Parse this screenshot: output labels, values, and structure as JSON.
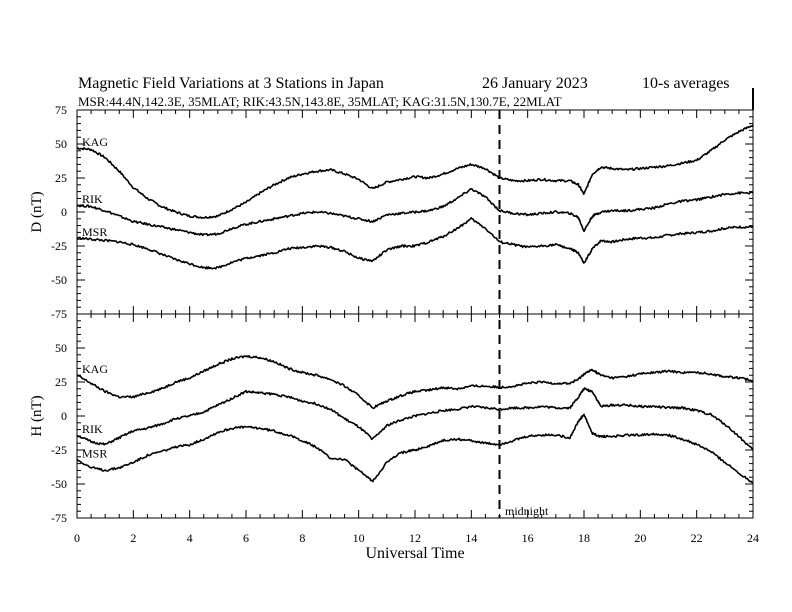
{
  "chart_data": {
    "type": "line",
    "title": "Magnetic Field Variations at 3 Stations in Japan",
    "date": "26 January  2023",
    "averaging": "10-s averages",
    "subtitle": "MSR:44.4N,142.3E, 35MLAT;  RIK:43.5N,143.8E, 35MLAT;  KAG:31.5N,130.7E, 22MLAT",
    "xlabel": "Universal Time",
    "xlim": [
      0,
      24
    ],
    "x_ticks": [
      "0",
      "2",
      "4",
      "6",
      "8",
      "10",
      "12",
      "14",
      "16",
      "18",
      "20",
      "22",
      "24"
    ],
    "midnight_marker": {
      "x": 15,
      "label": "midnight"
    },
    "panels": [
      {
        "ylabel": "D (nT)",
        "ylim": [
          -75,
          75
        ],
        "y_ticks": [
          "75",
          "50",
          "25",
          "0",
          "-25",
          "-50",
          "-75"
        ],
        "series": [
          {
            "name": "KAG",
            "x": [
              0,
              0.5,
              1,
              1.5,
              2,
              2.5,
              3,
              3.5,
              4,
              4.5,
              5,
              5.5,
              6,
              6.5,
              7,
              7.5,
              8,
              8.5,
              9,
              9.5,
              10,
              10.5,
              11,
              11.5,
              12,
              12.5,
              13,
              13.5,
              14,
              14.5,
              15,
              15.5,
              16,
              16.5,
              17,
              17.5,
              17.8,
              18,
              18.3,
              18.6,
              19,
              19.5,
              20,
              20.5,
              21,
              21.5,
              22,
              22.5,
              23,
              23.5,
              24
            ],
            "y": [
              47,
              46,
              40,
              30,
              18,
              10,
              4,
              0,
              -3,
              -4,
              -3,
              2,
              7,
              14,
              20,
              25,
              28,
              30,
              31,
              28,
              24,
              17,
              22,
              24,
              26,
              25,
              28,
              32,
              35,
              32,
              25,
              23,
              23,
              24,
              23,
              23,
              20,
              13,
              28,
              33,
              32,
              31,
              32,
              33,
              34,
              36,
              38,
              45,
              53,
              59,
              64
            ]
          },
          {
            "name": "RIK",
            "x": [
              0,
              0.5,
              1,
              1.5,
              2,
              2.5,
              3,
              3.5,
              4,
              4.5,
              5,
              5.5,
              6,
              6.5,
              7,
              7.5,
              8,
              8.5,
              9,
              9.5,
              10,
              10.5,
              11,
              11.5,
              12,
              12.5,
              13,
              13.5,
              14,
              14.5,
              15,
              15.5,
              16,
              16.5,
              17,
              17.5,
              17.8,
              18,
              18.3,
              18.6,
              19,
              19.5,
              20,
              20.5,
              21,
              21.5,
              22,
              22.5,
              23,
              23.5,
              24
            ],
            "y": [
              5,
              4,
              1,
              -3,
              -7,
              -9,
              -11,
              -13,
              -15,
              -17,
              -16,
              -12,
              -9,
              -7,
              -5,
              -3,
              -1,
              0,
              -1,
              -3,
              -5,
              -7,
              -2,
              -1,
              0,
              1,
              4,
              10,
              17,
              11,
              1,
              -1,
              -2,
              -1,
              0,
              -1,
              -4,
              -14,
              -3,
              0,
              1,
              1,
              2,
              3,
              6,
              8,
              9,
              11,
              13,
              14,
              14
            ]
          },
          {
            "name": "MSR",
            "x": [
              0,
              0.5,
              1,
              1.5,
              2,
              2.5,
              3,
              3.5,
              4,
              4.5,
              5,
              5.5,
              6,
              6.5,
              7,
              7.5,
              8,
              8.5,
              9,
              9.5,
              10,
              10.5,
              11,
              11.5,
              12,
              12.5,
              13,
              13.5,
              14,
              14.5,
              15,
              15.5,
              16,
              16.5,
              17,
              17.5,
              17.8,
              18,
              18.3,
              18.6,
              19,
              19.5,
              20,
              20.5,
              21,
              21.5,
              22,
              22.5,
              23,
              23.5,
              24
            ],
            "y": [
              -19,
              -20,
              -21,
              -22,
              -24,
              -27,
              -31,
              -35,
              -38,
              -41,
              -41,
              -37,
              -34,
              -32,
              -30,
              -27,
              -26,
              -25,
              -26,
              -29,
              -34,
              -36,
              -28,
              -25,
              -25,
              -22,
              -18,
              -12,
              -5,
              -12,
              -22,
              -24,
              -26,
              -25,
              -24,
              -27,
              -30,
              -38,
              -27,
              -21,
              -22,
              -20,
              -19,
              -19,
              -17,
              -16,
              -15,
              -14,
              -12,
              -11,
              -11
            ]
          }
        ]
      },
      {
        "ylabel": "H (nT)",
        "ylim": [
          -75,
          75
        ],
        "y_ticks": [
          "75",
          "50",
          "25",
          "0",
          "-25",
          "-50",
          "-75"
        ],
        "series": [
          {
            "name": "KAG",
            "x": [
              0,
              0.5,
              1,
              1.5,
              2,
              2.5,
              3,
              3.5,
              4,
              4.5,
              5,
              5.5,
              6,
              6.5,
              7,
              7.5,
              8,
              8.5,
              9,
              9.5,
              10,
              10.5,
              11,
              11.5,
              12,
              12.5,
              13,
              13.5,
              14,
              14.5,
              15,
              15.5,
              16,
              16.5,
              17,
              17.5,
              17.8,
              18,
              18.3,
              18.6,
              19,
              19.5,
              20,
              20.5,
              21,
              21.5,
              22,
              22.5,
              23,
              23.5,
              24
            ],
            "y": [
              30,
              24,
              18,
              14,
              14,
              17,
              20,
              25,
              28,
              33,
              38,
              42,
              44,
              43,
              40,
              35,
              32,
              30,
              27,
              22,
              15,
              6,
              11,
              15,
              18,
              19,
              21,
              20,
              22,
              22,
              21,
              22,
              24,
              25,
              24,
              24,
              27,
              31,
              34,
              30,
              28,
              29,
              31,
              32,
              33,
              32,
              32,
              31,
              29,
              28,
              26
            ]
          },
          {
            "name": "RIK",
            "x": [
              0,
              0.5,
              1,
              1.5,
              2,
              2.5,
              3,
              3.5,
              4,
              4.5,
              5,
              5.5,
              6,
              6.5,
              7,
              7.5,
              8,
              8.5,
              9,
              9.5,
              10,
              10.5,
              11,
              11.5,
              12,
              12.5,
              13,
              13.5,
              14,
              14.5,
              15,
              15.5,
              16,
              16.5,
              17,
              17.5,
              17.8,
              18,
              18.3,
              18.6,
              19,
              19.5,
              20,
              20.5,
              21,
              21.5,
              22,
              22.5,
              23,
              23.5,
              24
            ],
            "y": [
              -14,
              -19,
              -21,
              -16,
              -11,
              -9,
              -6,
              -2,
              0,
              3,
              8,
              13,
              18,
              17,
              16,
              14,
              11,
              9,
              5,
              -2,
              -8,
              -17,
              -7,
              -3,
              0,
              2,
              4,
              5,
              7,
              6,
              5,
              6,
              6,
              7,
              6,
              6,
              14,
              20,
              18,
              7,
              8,
              8,
              7,
              7,
              6,
              6,
              4,
              1,
              -6,
              -15,
              -25
            ]
          },
          {
            "name": "MSR",
            "x": [
              0,
              0.5,
              1,
              1.5,
              2,
              2.5,
              3,
              3.5,
              4,
              4.5,
              5,
              5.5,
              6,
              6.5,
              7,
              7.5,
              8,
              8.5,
              9,
              9.5,
              10,
              10.5,
              11,
              11.5,
              12,
              12.5,
              13,
              13.5,
              14,
              14.5,
              15,
              15.5,
              16,
              16.5,
              17,
              17.5,
              17.8,
              18,
              18.3,
              18.6,
              19,
              19.5,
              20,
              20.5,
              21,
              21.5,
              22,
              22.5,
              23,
              23.5,
              24
            ],
            "y": [
              -32,
              -38,
              -40,
              -38,
              -34,
              -29,
              -26,
              -23,
              -21,
              -17,
              -12,
              -9,
              -8,
              -9,
              -11,
              -14,
              -18,
              -23,
              -31,
              -32,
              -40,
              -48,
              -34,
              -27,
              -25,
              -22,
              -18,
              -17,
              -18,
              -20,
              -21,
              -18,
              -15,
              -14,
              -14,
              -16,
              -4,
              1,
              -13,
              -15,
              -15,
              -14,
              -14,
              -13,
              -14,
              -17,
              -21,
              -26,
              -34,
              -42,
              -49
            ]
          }
        ]
      }
    ]
  }
}
